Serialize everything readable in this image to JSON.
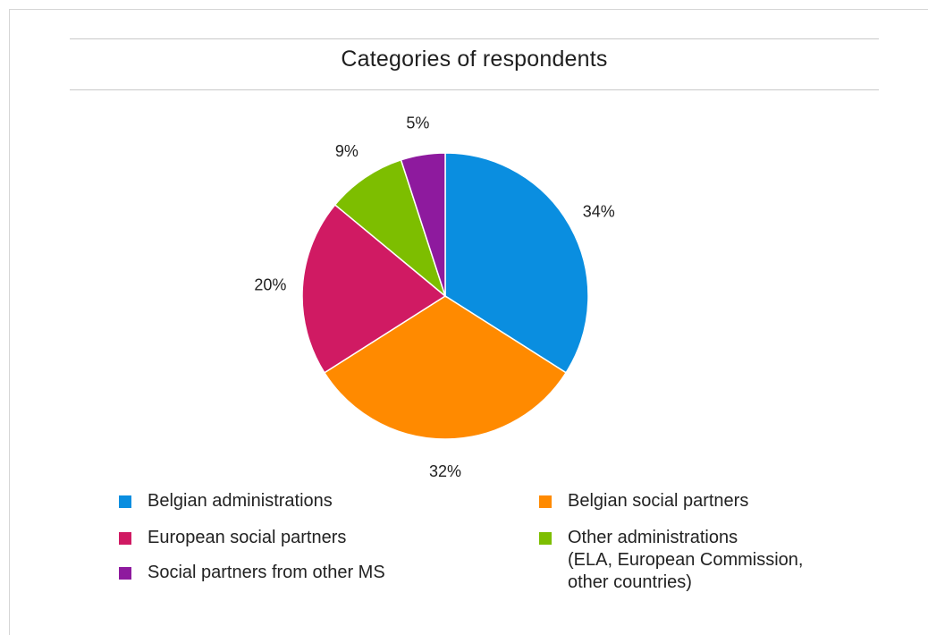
{
  "chart_data": {
    "type": "pie",
    "title": "Categories of respondents",
    "slices": [
      {
        "name": "Belgian administrations",
        "value": 34,
        "label": "34%",
        "color": "#0a8ee0"
      },
      {
        "name": "Belgian social partners",
        "value": 32,
        "label": "32%",
        "color": "#ff8a00"
      },
      {
        "name": "European social partners",
        "value": 20,
        "label": "20%",
        "color": "#d01a63"
      },
      {
        "name": "Other administrations\n(ELA, European Commission,\nother countries)",
        "value": 9,
        "label": "9%",
        "color": "#7dbe00"
      },
      {
        "name": "Social partners from other MS",
        "value": 5,
        "label": "5%",
        "color": "#8e1a9e"
      }
    ]
  }
}
